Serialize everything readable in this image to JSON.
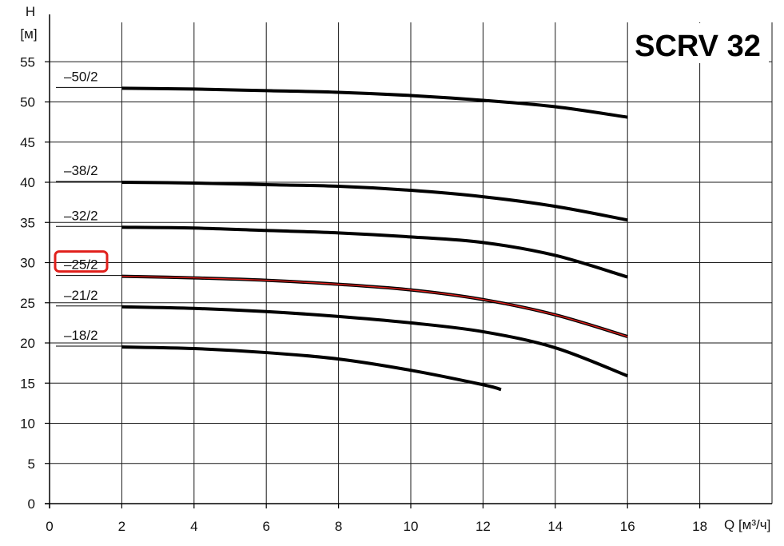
{
  "chart_data": {
    "type": "line",
    "title": "SCRV 32",
    "ylabel": "H",
    "ylabel_unit": "[м]",
    "xlabel": "Q [м³/ч]",
    "xlim": [
      0,
      20
    ],
    "ylim": [
      0,
      57
    ],
    "x_ticks": [
      0,
      2,
      4,
      6,
      8,
      10,
      12,
      14,
      16,
      18
    ],
    "y_ticks": [
      0,
      5,
      10,
      15,
      20,
      25,
      30,
      35,
      40,
      45,
      50,
      55
    ],
    "grid": true,
    "highlight_color": "#e0201c",
    "series": [
      {
        "name": "–50/2",
        "x": [
          2,
          4,
          6,
          8,
          10,
          12,
          14,
          16
        ],
        "y": [
          51.7,
          51.6,
          51.4,
          51.2,
          50.8,
          50.2,
          49.4,
          48.1
        ]
      },
      {
        "name": "–38/2",
        "x": [
          2,
          4,
          6,
          8,
          10,
          12,
          14,
          16
        ],
        "y": [
          40.0,
          39.9,
          39.7,
          39.5,
          39.0,
          38.2,
          37.0,
          35.3
        ]
      },
      {
        "name": "–32/2",
        "x": [
          2,
          4,
          6,
          8,
          10,
          12,
          14,
          16
        ],
        "y": [
          34.4,
          34.3,
          34.0,
          33.7,
          33.2,
          32.5,
          30.9,
          28.2
        ]
      },
      {
        "name": "–25/2",
        "highlighted": true,
        "x": [
          2,
          4,
          6,
          8,
          10,
          12,
          14,
          16
        ],
        "y": [
          28.3,
          28.1,
          27.8,
          27.3,
          26.6,
          25.4,
          23.5,
          20.8
        ]
      },
      {
        "name": "–21/2",
        "x": [
          2,
          4,
          6,
          8,
          10,
          12,
          14,
          16
        ],
        "y": [
          24.5,
          24.3,
          23.9,
          23.3,
          22.5,
          21.4,
          19.4,
          15.9
        ]
      },
      {
        "name": "–18/2",
        "x": [
          2,
          4,
          6,
          8,
          10,
          12,
          12.5
        ],
        "y": [
          19.5,
          19.3,
          18.8,
          18.0,
          16.6,
          14.8,
          14.2
        ]
      }
    ]
  }
}
